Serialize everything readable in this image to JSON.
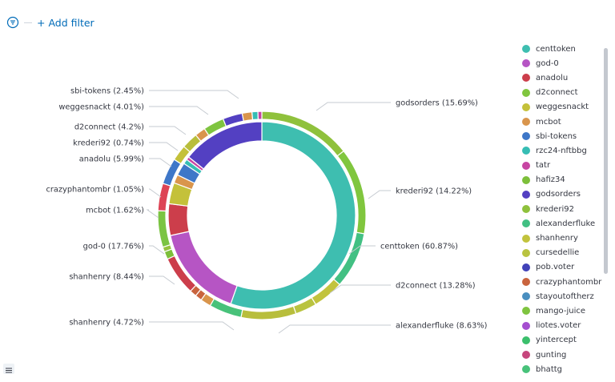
{
  "toolbar": {
    "add_filter_label": "+ Add filter"
  },
  "chart_data": {
    "type": "pie",
    "donut": true,
    "inner_ring": [
      {
        "label": "centtoken",
        "value": 60.87,
        "color": "#3ebeb0"
      },
      {
        "label": "god-0",
        "value": 17.76,
        "color": "#b655c4"
      },
      {
        "label": "anadolu",
        "value": 5.99,
        "color": "#cc3e4b"
      },
      {
        "label": "weggesnackt",
        "value": 4.01,
        "color": "#c4c13a"
      },
      {
        "label": "mcbot",
        "value": 1.62,
        "color": "#d9954c"
      },
      {
        "label": "sbi-tokens",
        "value": 2.45,
        "color": "#3e77c8"
      },
      {
        "label": "rzc24-nftbbg",
        "value": 0.9,
        "color": "#36bdb4"
      },
      {
        "label": "tatr",
        "value": 0.6,
        "color": "#c745a3"
      },
      {
        "label": "godsorders",
        "value": 15.69,
        "color": "#5340c2"
      }
    ],
    "outer_ring": [
      {
        "label": "krederi92",
        "value": 14.22,
        "color": "#8fc13c"
      },
      {
        "label": "d2connect",
        "value": 13.28,
        "color": "#80c63e"
      },
      {
        "label": "alexanderfluke",
        "value": 8.63,
        "color": "#42c083"
      },
      {
        "label": "shanhenry",
        "value": 4.72,
        "color": "#c2c33d"
      },
      {
        "label": "cursedellie",
        "value": 3.3,
        "color": "#b9c340"
      },
      {
        "label": "shanhenry",
        "value": 8.44,
        "color": "#b8be3c"
      },
      {
        "label": "bhattg",
        "value": 5.0,
        "color": "#48c27a"
      },
      {
        "label": "mcbot",
        "value": 1.62,
        "color": "#d9954c"
      },
      {
        "label": "crazyphantombr",
        "value": 1.05,
        "color": "#c9643e"
      },
      {
        "label": "crazyphantombr",
        "value": 1.05,
        "color": "#c9643e"
      },
      {
        "label": "anadolu",
        "value": 5.99,
        "color": "#cc3e4b"
      },
      {
        "label": "hafiz34",
        "value": 1.2,
        "color": "#7dbf3a"
      },
      {
        "label": "krederi92",
        "value": 0.74,
        "color": "#95c23f"
      },
      {
        "label": "hafiz34",
        "value": 5.6,
        "color": "#7bc442"
      },
      {
        "label": "d2connect",
        "value": 4.2,
        "color": "#dd4455"
      },
      {
        "label": "weggesnackt",
        "value": 4.01,
        "color": "#3e77c8"
      },
      {
        "label": "sbi-tokens",
        "value": 2.45,
        "color": "#c4c13a"
      },
      {
        "label": "shanhenry",
        "value": 2.5,
        "color": "#b8be3c"
      },
      {
        "label": "mcbot",
        "value": 1.62,
        "color": "#d9954c"
      },
      {
        "label": "mango-juice",
        "value": 3.2,
        "color": "#7fc440"
      },
      {
        "label": "godsorders",
        "value": 3.0,
        "color": "#5340c2"
      },
      {
        "label": "mcbot",
        "value": 1.5,
        "color": "#d9954c"
      },
      {
        "label": "rzc24-nftbbg",
        "value": 0.9,
        "color": "#36bdb4"
      },
      {
        "label": "tatr",
        "value": 0.6,
        "color": "#c745a3"
      }
    ],
    "annotations": [
      {
        "text": "godsorders (15.69%)",
        "side": "right"
      },
      {
        "text": "krederi92 (14.22%)",
        "side": "right"
      },
      {
        "text": "centtoken (60.87%)",
        "side": "right"
      },
      {
        "text": "d2connect (13.28%)",
        "side": "right"
      },
      {
        "text": "alexanderfluke (8.63%)",
        "side": "right"
      },
      {
        "text": "sbi-tokens (2.45%)",
        "side": "left"
      },
      {
        "text": "weggesnackt (4.01%)",
        "side": "left"
      },
      {
        "text": "d2connect (4.2%)",
        "side": "left"
      },
      {
        "text": "krederi92 (0.74%)",
        "side": "left"
      },
      {
        "text": "anadolu (5.99%)",
        "side": "left"
      },
      {
        "text": "crazyphantombr (1.05%)",
        "side": "left"
      },
      {
        "text": "mcbot (1.62%)",
        "side": "left"
      },
      {
        "text": "god-0 (17.76%)",
        "side": "left"
      },
      {
        "text": "shanhenry (8.44%)",
        "side": "left"
      },
      {
        "text": "shanhenry (4.72%)",
        "side": "left"
      }
    ],
    "legend": [
      {
        "label": "centtoken",
        "color": "#3ebeb0"
      },
      {
        "label": "god-0",
        "color": "#b655c4"
      },
      {
        "label": "anadolu",
        "color": "#cc3e4b"
      },
      {
        "label": "d2connect",
        "color": "#80c63e"
      },
      {
        "label": "weggesnackt",
        "color": "#c4c13a"
      },
      {
        "label": "mcbot",
        "color": "#d9954c"
      },
      {
        "label": "sbi-tokens",
        "color": "#3e77c8"
      },
      {
        "label": "rzc24-nftbbg",
        "color": "#36bdb4"
      },
      {
        "label": "tatr",
        "color": "#c745a3"
      },
      {
        "label": "hafiz34",
        "color": "#7dbf3a"
      },
      {
        "label": "godsorders",
        "color": "#5340c2"
      },
      {
        "label": "krederi92",
        "color": "#8fc13c"
      },
      {
        "label": "alexanderfluke",
        "color": "#42c083"
      },
      {
        "label": "shanhenry",
        "color": "#c2c33d"
      },
      {
        "label": "cursedellie",
        "color": "#b9c340"
      },
      {
        "label": "pob.voter",
        "color": "#4142b8"
      },
      {
        "label": "crazyphantombr",
        "color": "#c9643e"
      },
      {
        "label": "stayoutoftherz",
        "color": "#4a8fc0"
      },
      {
        "label": "mango-juice",
        "color": "#7fc440"
      },
      {
        "label": "liotes.voter",
        "color": "#a54fd0"
      },
      {
        "label": "yintercept",
        "color": "#3bbf6c"
      },
      {
        "label": "gunting",
        "color": "#c6467d"
      },
      {
        "label": "bhattg",
        "color": "#48c27a"
      }
    ],
    "legend_placement": "right"
  }
}
